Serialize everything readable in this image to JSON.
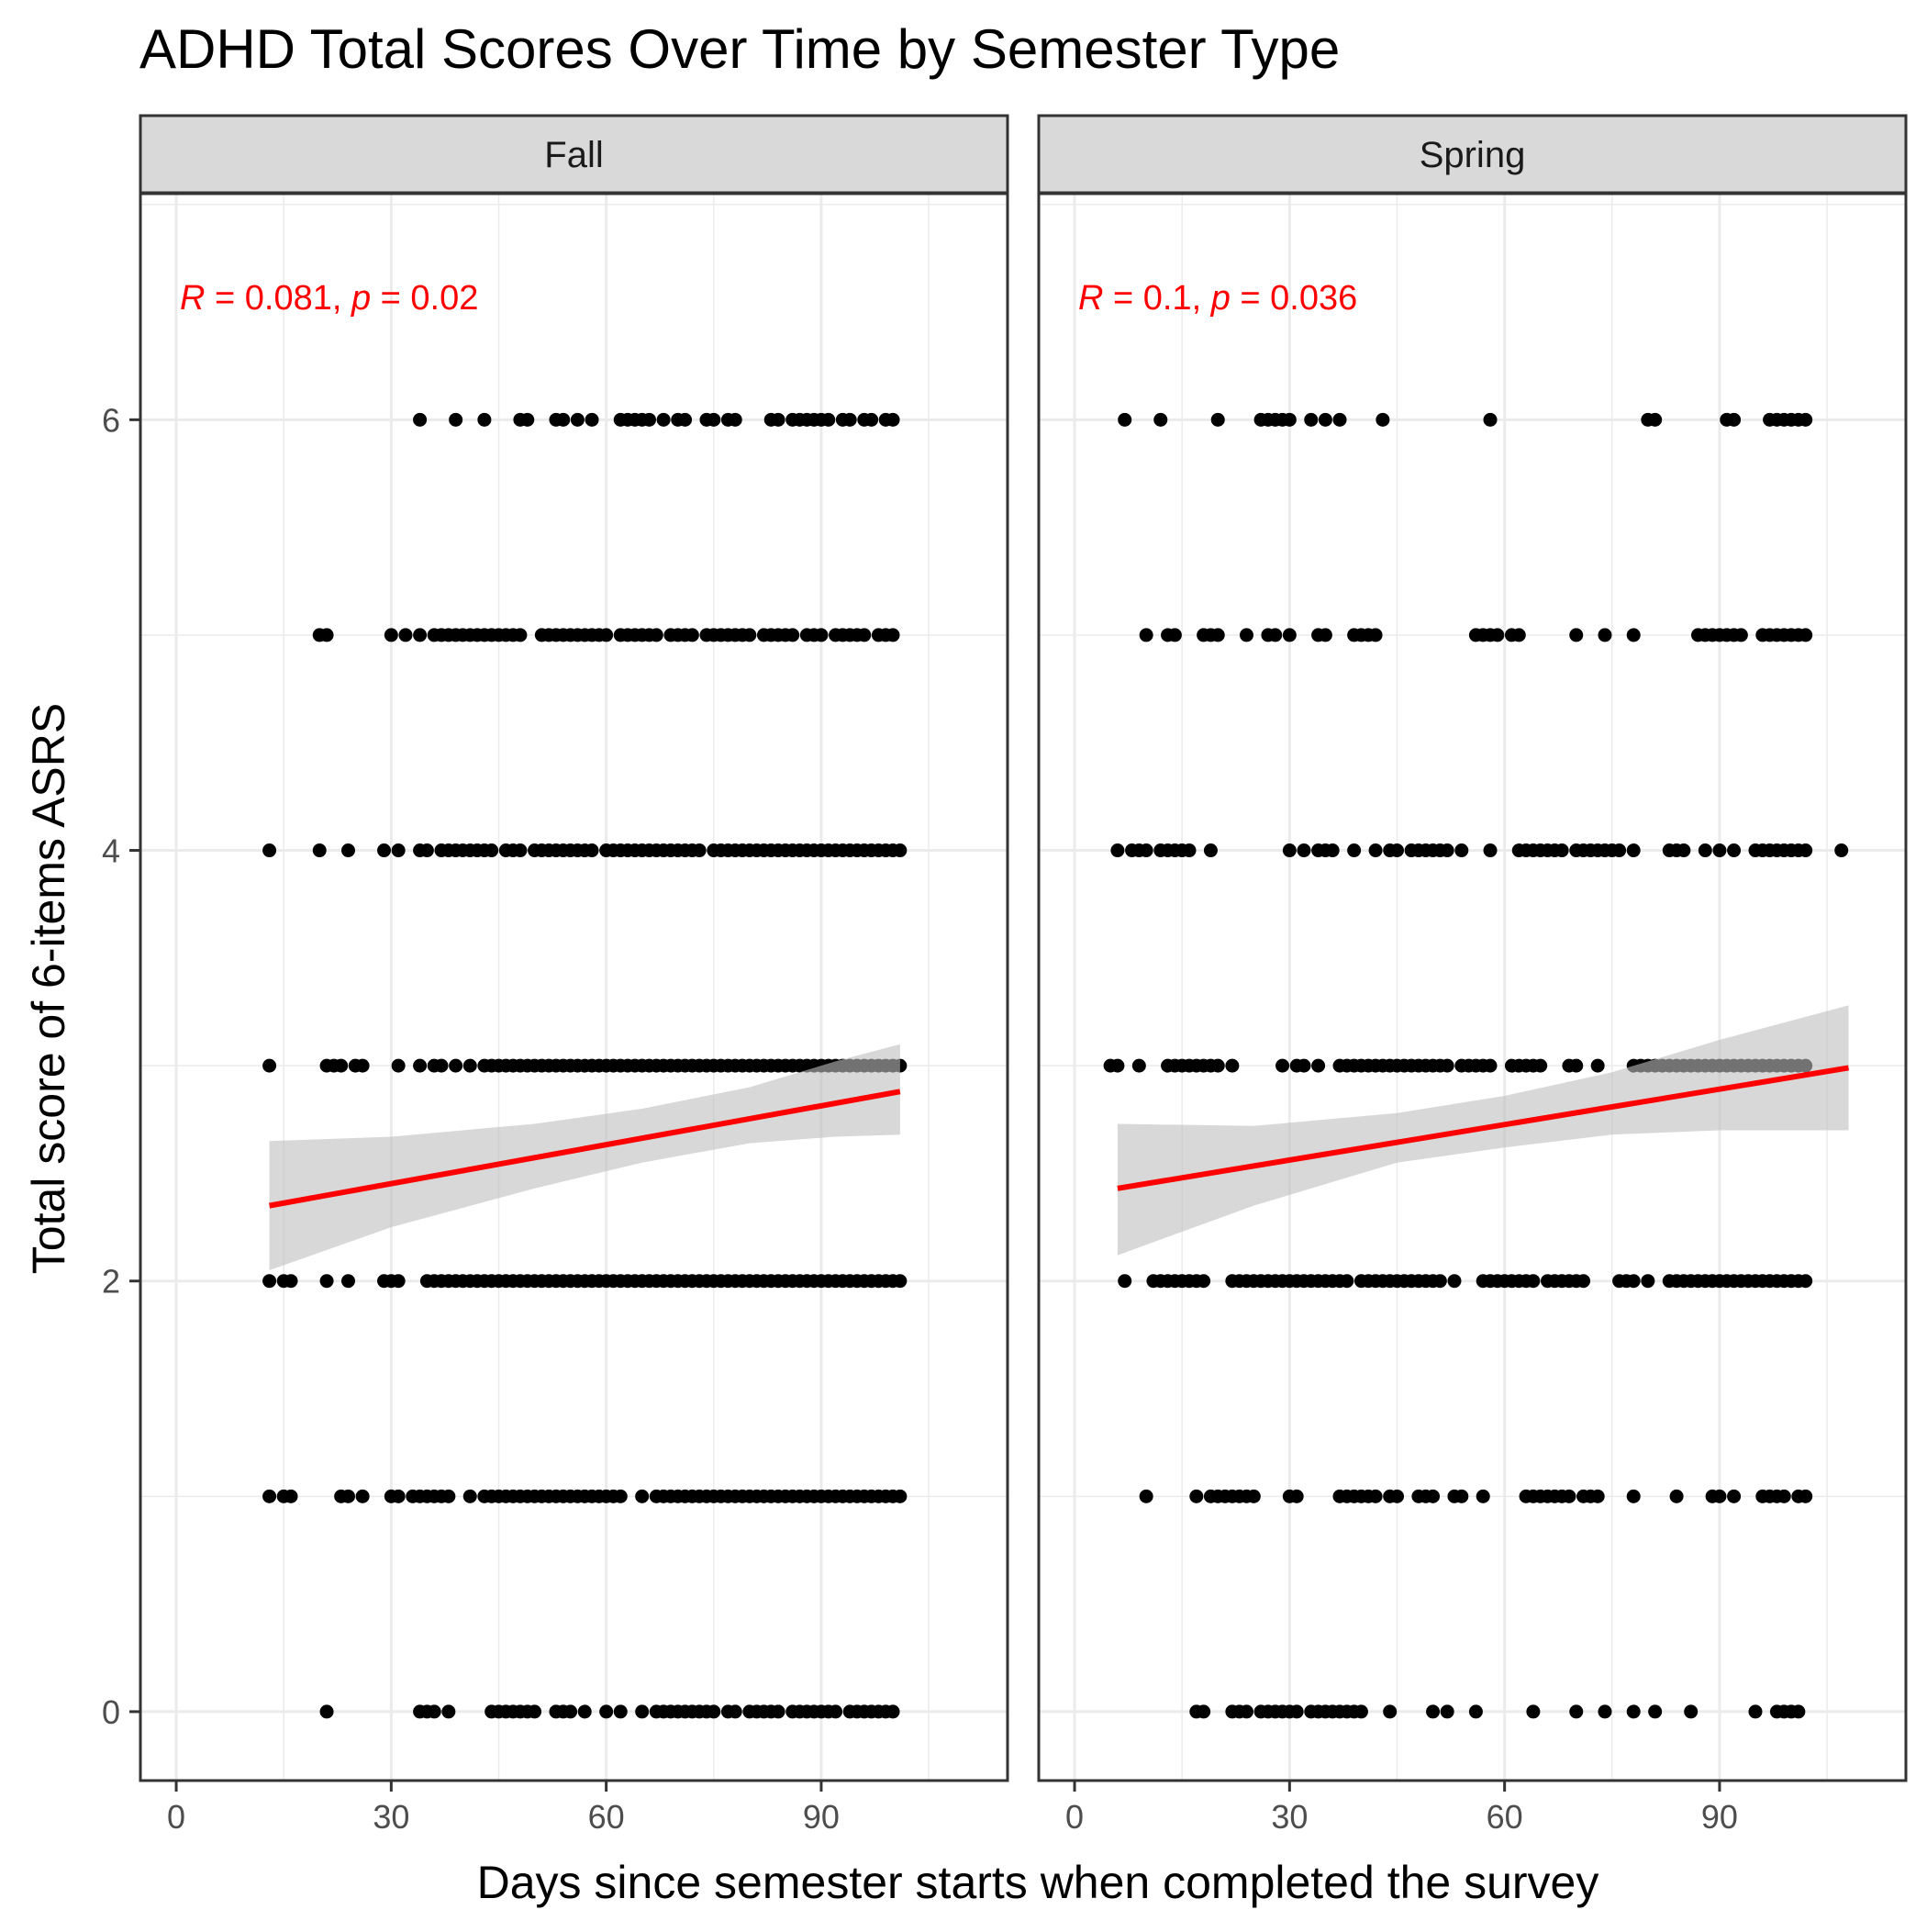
{
  "chart_data": {
    "type": "scatter",
    "title": "ADHD Total Scores Over Time by Semester Type",
    "xlabel": "Days since semester starts when completed the survey",
    "ylabel": "Total score of 6-items ASRS",
    "xlim": [
      -5,
      116
    ],
    "ylim": [
      -0.32,
      7.05
    ],
    "x_ticks": [
      0,
      30,
      60,
      90
    ],
    "y_ticks": [
      0,
      2,
      4,
      6
    ],
    "grid": true,
    "colors": {
      "points": "#000000",
      "fit_line": "#ff0000",
      "ribbon": "#bebebe",
      "strip": "#d9d9d9",
      "annotation": "#ff0000"
    },
    "panels": [
      {
        "name": "Fall",
        "annotation": {
          "R": "0.081",
          "p": "0.02"
        },
        "fit": {
          "x0": 13,
          "y0": 2.35,
          "x1": 101,
          "y1": 2.88
        },
        "ribbon_upper": [
          [
            13,
            2.65
          ],
          [
            30,
            2.67
          ],
          [
            50,
            2.73
          ],
          [
            65,
            2.8
          ],
          [
            80,
            2.9
          ],
          [
            92,
            3.02
          ],
          [
            101,
            3.1
          ]
        ],
        "ribbon_lower": [
          [
            13,
            2.05
          ],
          [
            30,
            2.25
          ],
          [
            50,
            2.43
          ],
          [
            65,
            2.55
          ],
          [
            80,
            2.64
          ],
          [
            92,
            2.67
          ],
          [
            101,
            2.68
          ]
        ],
        "points": [
          {
            "y": 6,
            "x": [
              34,
              39,
              43,
              48,
              49,
              53,
              54,
              56,
              58,
              62,
              63,
              64,
              65,
              66,
              68,
              70,
              71,
              74,
              75,
              77,
              78,
              83,
              84,
              86,
              87,
              88,
              89,
              90,
              91,
              93,
              94,
              96,
              97,
              99,
              100
            ]
          },
          {
            "y": 5,
            "x": [
              20,
              21,
              30,
              32,
              34,
              36,
              37,
              38,
              39,
              40,
              41,
              42,
              43,
              44,
              45,
              46,
              47,
              48,
              51,
              52,
              53,
              54,
              55,
              56,
              57,
              58,
              59,
              60,
              62,
              63,
              64,
              65,
              66,
              67,
              69,
              70,
              71,
              72,
              74,
              75,
              76,
              77,
              78,
              79,
              80,
              82,
              83,
              84,
              85,
              86,
              88,
              89,
              90,
              92,
              93,
              94,
              95,
              96,
              98,
              99,
              100
            ]
          },
          {
            "y": 4,
            "x": [
              13,
              20,
              24,
              29,
              31,
              34,
              35,
              37,
              38,
              39,
              40,
              41,
              42,
              43,
              44,
              46,
              47,
              48,
              50,
              51,
              52,
              53,
              54,
              55,
              56,
              57,
              58,
              60,
              61,
              62,
              63,
              64,
              65,
              66,
              67,
              68,
              69,
              70,
              71,
              72,
              73,
              75,
              76,
              77,
              78,
              79,
              80,
              81,
              82,
              83,
              84,
              85,
              86,
              87,
              88,
              89,
              90,
              91,
              92,
              93,
              94,
              95,
              96,
              97,
              98,
              99,
              100,
              101
            ]
          },
          {
            "y": 3,
            "x": [
              13,
              21,
              22,
              23,
              25,
              26,
              31,
              34,
              36,
              37,
              39,
              41,
              43,
              44,
              45,
              46,
              47,
              48,
              49,
              50,
              51,
              52,
              53,
              54,
              55,
              56,
              57,
              58,
              59,
              60,
              61,
              62,
              63,
              64,
              65,
              66,
              67,
              68,
              69,
              70,
              71,
              72,
              73,
              74,
              75,
              76,
              77,
              78,
              79,
              80,
              81,
              82,
              83,
              84,
              85,
              86,
              87,
              88,
              89,
              90,
              91,
              92,
              93,
              94,
              95,
              96,
              97,
              98,
              99,
              100,
              101
            ]
          },
          {
            "y": 2,
            "x": [
              13,
              15,
              16,
              21,
              24,
              29,
              30,
              31,
              35,
              36,
              37,
              38,
              39,
              40,
              41,
              42,
              43,
              44,
              45,
              46,
              47,
              48,
              49,
              50,
              51,
              52,
              53,
              54,
              55,
              56,
              57,
              58,
              59,
              60,
              61,
              62,
              63,
              64,
              65,
              66,
              67,
              68,
              69,
              70,
              71,
              72,
              73,
              74,
              75,
              76,
              77,
              78,
              79,
              80,
              81,
              82,
              83,
              84,
              85,
              86,
              87,
              88,
              89,
              90,
              91,
              92,
              93,
              94,
              95,
              96,
              97,
              98,
              99,
              100,
              101
            ]
          },
          {
            "y": 1,
            "x": [
              13,
              15,
              16,
              23,
              24,
              26,
              30,
              31,
              33,
              34,
              35,
              36,
              37,
              38,
              41,
              43,
              44,
              45,
              46,
              47,
              48,
              49,
              50,
              51,
              52,
              53,
              54,
              55,
              56,
              57,
              58,
              59,
              60,
              61,
              62,
              65,
              67,
              68,
              69,
              70,
              71,
              72,
              73,
              74,
              75,
              76,
              77,
              78,
              79,
              80,
              81,
              82,
              83,
              84,
              85,
              86,
              87,
              88,
              89,
              90,
              91,
              92,
              93,
              94,
              95,
              96,
              97,
              98,
              99,
              100,
              101
            ]
          },
          {
            "y": 0,
            "x": [
              21,
              34,
              35,
              36,
              38,
              44,
              45,
              46,
              47,
              48,
              49,
              50,
              53,
              54,
              55,
              57,
              60,
              62,
              65,
              67,
              68,
              69,
              70,
              71,
              72,
              73,
              74,
              75,
              77,
              78,
              80,
              81,
              82,
              83,
              84,
              86,
              87,
              88,
              89,
              90,
              91,
              92,
              94,
              95,
              96,
              97,
              98,
              99,
              100
            ]
          }
        ]
      },
      {
        "name": "Spring",
        "annotation": {
          "R": "0.1",
          "p": "0.036"
        },
        "fit": {
          "x0": 6,
          "y0": 2.43,
          "x1": 108,
          "y1": 2.99
        },
        "ribbon_upper": [
          [
            6,
            2.73
          ],
          [
            25,
            2.72
          ],
          [
            45,
            2.78
          ],
          [
            60,
            2.86
          ],
          [
            75,
            2.97
          ],
          [
            90,
            3.12
          ],
          [
            108,
            3.28
          ]
        ],
        "ribbon_lower": [
          [
            6,
            2.12
          ],
          [
            25,
            2.35
          ],
          [
            45,
            2.55
          ],
          [
            60,
            2.62
          ],
          [
            75,
            2.68
          ],
          [
            90,
            2.7
          ],
          [
            108,
            2.7
          ]
        ],
        "points": [
          {
            "y": 6,
            "x": [
              7,
              12,
              20,
              26,
              27,
              28,
              29,
              30,
              33,
              35,
              37,
              43,
              58,
              80,
              81,
              91,
              92,
              97,
              98,
              99,
              100,
              101,
              102
            ]
          },
          {
            "y": 5,
            "x": [
              10,
              13,
              14,
              18,
              19,
              20,
              24,
              27,
              28,
              30,
              34,
              35,
              39,
              40,
              41,
              42,
              56,
              57,
              58,
              59,
              61,
              62,
              70,
              74,
              78,
              87,
              88,
              89,
              90,
              91,
              92,
              93,
              96,
              97,
              98,
              99,
              100,
              101,
              102
            ]
          },
          {
            "y": 4,
            "x": [
              6,
              8,
              9,
              10,
              12,
              13,
              14,
              15,
              16,
              19,
              30,
              32,
              34,
              35,
              36,
              39,
              42,
              44,
              45,
              47,
              48,
              49,
              50,
              51,
              52,
              54,
              58,
              62,
              63,
              64,
              65,
              66,
              67,
              68,
              70,
              71,
              72,
              73,
              74,
              75,
              76,
              78,
              83,
              84,
              85,
              88,
              90,
              92,
              95,
              96,
              97,
              98,
              99,
              100,
              101,
              102,
              107
            ]
          },
          {
            "y": 3,
            "x": [
              5,
              6,
              9,
              13,
              14,
              15,
              16,
              17,
              18,
              19,
              20,
              22,
              29,
              31,
              32,
              34,
              37,
              38,
              39,
              40,
              41,
              42,
              43,
              44,
              45,
              46,
              47,
              48,
              49,
              50,
              51,
              52,
              54,
              55,
              56,
              57,
              58,
              61,
              62,
              63,
              64,
              65,
              69,
              70,
              73,
              78,
              79,
              80,
              81,
              82,
              83,
              84,
              85,
              86,
              87,
              88,
              89,
              90,
              91,
              92,
              93,
              94,
              95,
              96,
              97,
              98,
              99,
              100,
              101,
              102
            ]
          },
          {
            "y": 2,
            "x": [
              7,
              11,
              12,
              13,
              14,
              15,
              16,
              17,
              18,
              22,
              23,
              24,
              25,
              26,
              27,
              28,
              29,
              30,
              31,
              32,
              33,
              34,
              35,
              36,
              37,
              38,
              40,
              41,
              42,
              43,
              44,
              45,
              46,
              47,
              48,
              49,
              50,
              51,
              53,
              57,
              58,
              59,
              60,
              61,
              62,
              63,
              64,
              66,
              67,
              68,
              69,
              70,
              71,
              76,
              77,
              78,
              80,
              83,
              84,
              85,
              86,
              87,
              88,
              89,
              90,
              91,
              92,
              93,
              94,
              95,
              96,
              97,
              98,
              99,
              100,
              101,
              102
            ]
          },
          {
            "y": 1,
            "x": [
              10,
              17,
              19,
              20,
              21,
              22,
              23,
              24,
              25,
              30,
              31,
              37,
              38,
              39,
              40,
              41,
              42,
              44,
              45,
              48,
              49,
              50,
              53,
              54,
              57,
              63,
              64,
              65,
              66,
              67,
              68,
              69,
              71,
              72,
              73,
              78,
              84,
              89,
              90,
              92,
              96,
              97,
              98,
              99,
              101,
              102
            ]
          },
          {
            "y": 0,
            "x": [
              17,
              18,
              22,
              23,
              24,
              26,
              27,
              28,
              29,
              30,
              31,
              33,
              34,
              35,
              36,
              37,
              38,
              39,
              40,
              44,
              50,
              52,
              56,
              64,
              70,
              74,
              78,
              81,
              86,
              95,
              98,
              99,
              100,
              101
            ]
          }
        ]
      }
    ]
  }
}
